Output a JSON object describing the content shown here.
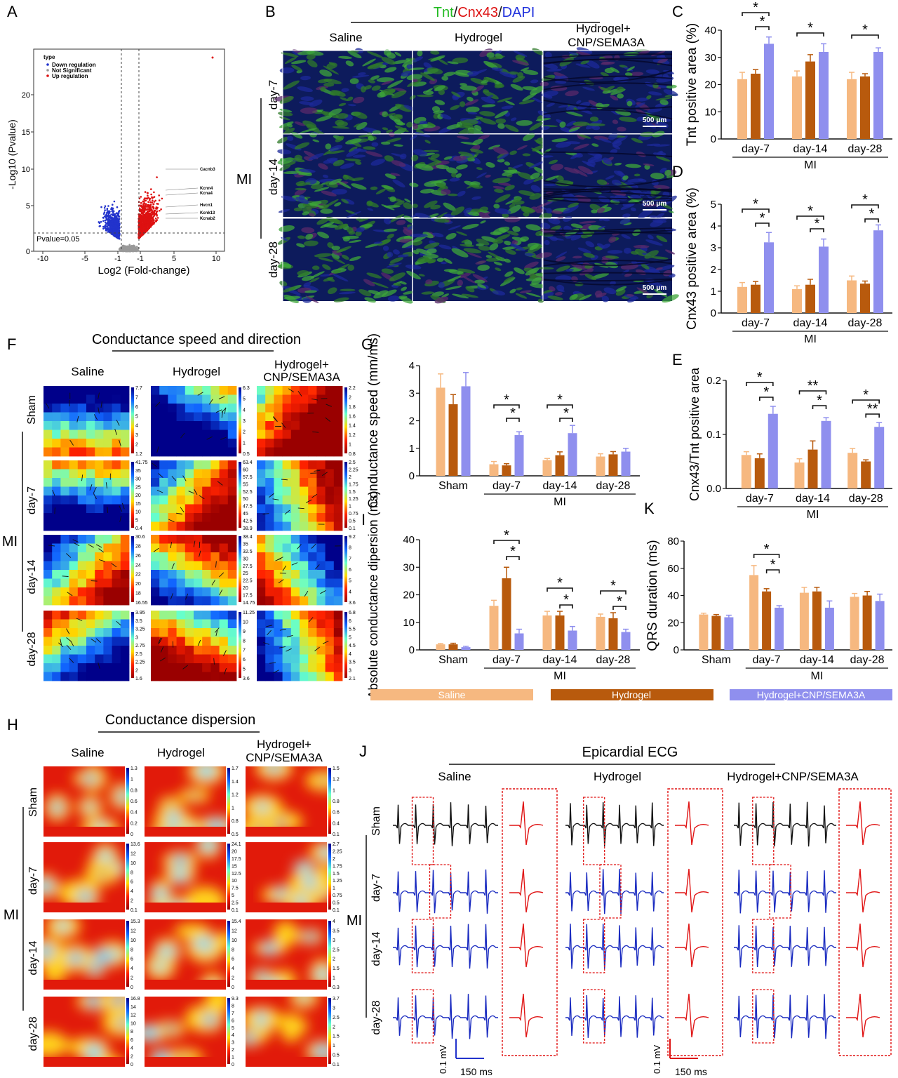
{
  "colors": {
    "saline": "#f6b880",
    "hydrogel": "#b85a0d",
    "combo": "#8f8fee",
    "down": "#2233cc",
    "up": "#dd1111",
    "ns": "#999999",
    "sham_trace": "#111111",
    "mi_trace": "#1a2bc0",
    "zoom_trace": "#e01515",
    "tnt": "#22bb22",
    "cnx": "#dd1111",
    "dapi": "#2233dd"
  },
  "legend": {
    "saline": "Saline",
    "hydrogel": "Hydrogel",
    "combo": "Hydrogel+CNP/SEMA3A"
  },
  "panelA": {
    "label": "A",
    "legend_title": "type",
    "legend_items": [
      "Down regulation",
      "Not Significant",
      "Up regulation"
    ],
    "ylabel": "-Log10 (Pvalue)",
    "xlabel": "Log2 (Fold-change)",
    "pvalue_label": "Pvalue=0.05",
    "xticks": [
      "-10",
      "-5",
      "-1",
      "-1",
      "5",
      "10"
    ],
    "yticks": [
      "0",
      "5",
      "10",
      "15",
      "20"
    ],
    "genes": [
      "Cacnb3",
      "Kcnn4",
      "Kcna4",
      "Hvcn1",
      "Kcnk13",
      "Kcnab2"
    ]
  },
  "panelB": {
    "label": "B",
    "title_parts": [
      "Tnt",
      "/",
      "Cnx43",
      "/",
      "DAPI"
    ],
    "columns": [
      "Saline",
      "Hydrogel",
      "Hydrogel+",
      "CNP/SEMA3A"
    ],
    "group": "MI",
    "rows": [
      "day-7",
      "day-14",
      "day-28"
    ],
    "scalebar": "500 μm"
  },
  "panelC": {
    "label": "C",
    "chart_data": {
      "type": "bar",
      "ylabel": "Tnt positive area (%)",
      "ylim": [
        0,
        40
      ],
      "yticks": [
        "0",
        "10",
        "20",
        "30",
        "40"
      ],
      "categories": [
        "day-7",
        "day-14",
        "day-28"
      ],
      "group_label": "MI",
      "series": [
        {
          "name": "Saline",
          "values": [
            22,
            23,
            22
          ]
        },
        {
          "name": "Hydrogel",
          "values": [
            24,
            28.5,
            23
          ]
        },
        {
          "name": "Hydrogel+CNP/SEMA3A",
          "values": [
            35,
            32,
            32
          ]
        }
      ],
      "errors": [
        [
          2.5,
          2,
          2.5
        ],
        [
          1.5,
          2.5,
          1
        ],
        [
          2.5,
          3,
          1.5
        ]
      ]
    }
  },
  "panelD": {
    "label": "D",
    "chart_data": {
      "type": "bar",
      "ylabel": "Cnx43 positive area (%)",
      "ylim": [
        0,
        5
      ],
      "yticks": [
        "0",
        "1",
        "2",
        "3",
        "4",
        "5"
      ],
      "categories": [
        "day-7",
        "day-14",
        "day-28"
      ],
      "group_label": "MI",
      "series": [
        {
          "name": "Saline",
          "values": [
            1.2,
            1.1,
            1.5
          ]
        },
        {
          "name": "Hydrogel",
          "values": [
            1.3,
            1.3,
            1.35
          ]
        },
        {
          "name": "Hydrogel+CNP/SEMA3A",
          "values": [
            3.25,
            3.05,
            3.8
          ]
        }
      ],
      "errors": [
        [
          0.2,
          0.15,
          0.2
        ],
        [
          0.15,
          0.25,
          0.12
        ],
        [
          0.45,
          0.35,
          0.25
        ]
      ]
    }
  },
  "panelE": {
    "label": "E",
    "chart_data": {
      "type": "bar",
      "ylabel": "Cnx43/Tnt positive area",
      "ylim": [
        0,
        0.2
      ],
      "yticks": [
        "0.0",
        "0.1",
        "0.2"
      ],
      "categories": [
        "day-7",
        "day-14",
        "day-28"
      ],
      "group_label": "MI",
      "series": [
        {
          "name": "Saline",
          "values": [
            0.062,
            0.048,
            0.066
          ]
        },
        {
          "name": "Hydrogel",
          "values": [
            0.056,
            0.072,
            0.05
          ]
        },
        {
          "name": "Hydrogel+CNP/SEMA3A",
          "values": [
            0.138,
            0.125,
            0.114
          ]
        }
      ],
      "errors": [
        [
          0.006,
          0.007,
          0.008
        ],
        [
          0.008,
          0.016,
          0.003
        ],
        [
          0.014,
          0.006,
          0.008
        ]
      ]
    }
  },
  "panelF": {
    "label": "F",
    "title": "Conductance speed and direction",
    "columns": [
      "Saline",
      "Hydrogel",
      "Hydrogel+",
      "CNP/SEMA3A"
    ],
    "group": "MI",
    "rows": [
      "Sham",
      "day-7",
      "day-14",
      "day-28"
    ],
    "scales": [
      [
        [
          "7.7",
          "7",
          "6",
          "5",
          "4",
          "3",
          "2",
          "1.2"
        ],
        [
          "6.3",
          "5",
          "4",
          "3",
          "2",
          "1",
          "0.5"
        ],
        [
          "2.2",
          "2",
          "1.8",
          "1.6",
          "1.4",
          "1.2",
          "1",
          "0.8"
        ]
      ],
      [
        [
          "41.75",
          "35",
          "30",
          "25",
          "20",
          "15",
          "10",
          "5",
          "0.4"
        ],
        [
          "63.4",
          "60",
          "57.5",
          "55",
          "52.5",
          "50",
          "47.5",
          "45",
          "42.5",
          "38.9"
        ],
        [
          "2.5",
          "2.25",
          "2",
          "1.75",
          "1.5",
          "1.25",
          "1",
          "0.75",
          "0.5",
          "0.1"
        ]
      ],
      [
        [
          "30.6",
          "28",
          "26",
          "24",
          "22",
          "20",
          "18",
          "16.55"
        ],
        [
          "38.4",
          "35",
          "32.5",
          "30",
          "27.5",
          "25",
          "22.5",
          "20",
          "17.5",
          "14.75"
        ],
        [
          "9.2",
          "8",
          "7",
          "6",
          "5",
          "4",
          "3.6"
        ]
      ],
      [
        [
          "3.95",
          "3.5",
          "3.25",
          "3",
          "2.75",
          "2.5",
          "2.25",
          "2",
          "1.6"
        ],
        [
          "11.25",
          "10",
          "9",
          "8",
          "7",
          "6",
          "5",
          "3.6"
        ],
        [
          "6.8",
          "6",
          "5.5",
          "5",
          "4.5",
          "4",
          "3.5",
          "3",
          "2.1"
        ]
      ]
    ]
  },
  "panelG": {
    "label": "G",
    "chart_data": {
      "type": "bar",
      "ylabel": "Conductance speed (mm/ms)",
      "ylim": [
        0,
        4
      ],
      "yticks": [
        "0",
        "1",
        "2",
        "3",
        "4"
      ],
      "categories": [
        "Sham",
        "day-7",
        "day-14",
        "day-28"
      ],
      "group_label": "MI",
      "series": [
        {
          "name": "Saline",
          "values": [
            3.2,
            0.42,
            0.57,
            0.7
          ]
        },
        {
          "name": "Hydrogel",
          "values": [
            2.6,
            0.38,
            0.75,
            0.78
          ]
        },
        {
          "name": "Hydrogel+CNP/SEMA3A",
          "values": [
            3.25,
            1.48,
            1.55,
            0.88
          ]
        }
      ],
      "errors": [
        [
          0.5,
          0.1,
          0.06,
          0.1
        ],
        [
          0.35,
          0.06,
          0.12,
          0.1
        ],
        [
          0.5,
          0.12,
          0.28,
          0.12
        ]
      ]
    }
  },
  "panelH": {
    "label": "H",
    "title": "Conductance dispersion",
    "columns": [
      "Saline",
      "Hydrogel",
      "Hydrogel+",
      "CNP/SEMA3A"
    ],
    "group": "MI",
    "rows": [
      "Sham",
      "day-7",
      "day-14",
      "day-28"
    ],
    "scales": [
      [
        [
          "1.3",
          "1",
          "0.8",
          "0.6",
          "0.4",
          "0.2",
          "0"
        ],
        [
          "1.7",
          "1.4",
          "1.2",
          "1",
          "0.8",
          "0.5"
        ],
        [
          "1.5",
          "1.2",
          "1",
          "0.8",
          "0.6",
          "0.4",
          "0.1"
        ]
      ],
      [
        [
          "13.6",
          "12",
          "10",
          "8",
          "6",
          "4",
          "2",
          "0.1"
        ],
        [
          "24.1",
          "20",
          "17.5",
          "15",
          "12.5",
          "10",
          "7.5",
          "5",
          "2.5",
          "0.1"
        ],
        [
          "2.7",
          "2.25",
          "2",
          "1.75",
          "1.5",
          "1.25",
          "1",
          "0.75",
          "0.5",
          "0.1"
        ]
      ],
      [
        [
          "15.3",
          "12",
          "10",
          "8",
          "6",
          "4",
          "2",
          "0"
        ],
        [
          "15.4",
          "12",
          "10",
          "8",
          "6",
          "4",
          "2",
          "0"
        ],
        [
          "4",
          "3.5",
          "3",
          "2.5",
          "2",
          "1.5",
          "1",
          "0.3"
        ]
      ],
      [
        [
          "16.8",
          "14",
          "12",
          "10",
          "8",
          "6",
          "4",
          "2",
          "0"
        ],
        [
          "9.3",
          "8",
          "7",
          "6",
          "5",
          "4",
          "3",
          "2",
          "1",
          "0"
        ],
        [
          "3.7",
          "3",
          "2.5",
          "2",
          "1.5",
          "1",
          "0.5",
          "0.1"
        ]
      ]
    ]
  },
  "panelI": {
    "label": "I",
    "chart_data": {
      "type": "bar",
      "ylabel": "Absolute conductance dipersion (ms)",
      "ylim": [
        0,
        40
      ],
      "yticks": [
        "0",
        "10",
        "20",
        "30",
        "40"
      ],
      "categories": [
        "Sham",
        "day-7",
        "day-14",
        "day-28"
      ],
      "group_label": "MI",
      "series": [
        {
          "name": "Saline",
          "values": [
            2,
            16,
            12.5,
            12
          ]
        },
        {
          "name": "Hydrogel",
          "values": [
            2,
            26,
            12.5,
            11.5
          ]
        },
        {
          "name": "Hydrogel+CNP/SEMA3A",
          "values": [
            1,
            6,
            7,
            6.5
          ]
        }
      ],
      "errors": [
        [
          0.3,
          2,
          1.5,
          1
        ],
        [
          0.4,
          4,
          1.5,
          2
        ],
        [
          0.3,
          1.5,
          1.5,
          1
        ]
      ]
    }
  },
  "panelJ": {
    "label": "J",
    "title": "Epicardial ECG",
    "columns": [
      "Saline",
      "Hydrogel",
      "Hydrogel+CNP/SEMA3A"
    ],
    "group": "MI",
    "rows": [
      "Sham",
      "day-7",
      "day-14",
      "day-28"
    ],
    "scale_v": "0.1 mV",
    "scale_t": "150 ms"
  },
  "panelK": {
    "label": "K",
    "chart_data": {
      "type": "bar",
      "ylabel": "QRS duration (ms)",
      "ylim": [
        0,
        80
      ],
      "yticks": [
        "0",
        "20",
        "40",
        "60",
        "80"
      ],
      "categories": [
        "Sham",
        "day-7",
        "day-14",
        "day-28"
      ],
      "group_label": "MI",
      "series": [
        {
          "name": "Saline",
          "values": [
            26,
            55,
            42,
            39
          ]
        },
        {
          "name": "Hydrogel",
          "values": [
            25,
            43,
            43,
            40
          ]
        },
        {
          "name": "Hydrogel+CNP/SEMA3A",
          "values": [
            24,
            31,
            31,
            36
          ]
        }
      ],
      "errors": [
        [
          1,
          7,
          4,
          2.5
        ],
        [
          1,
          2,
          3,
          3
        ],
        [
          1.5,
          1.5,
          5,
          5
        ]
      ]
    }
  },
  "sig": {
    "one": "*",
    "two": "**"
  }
}
